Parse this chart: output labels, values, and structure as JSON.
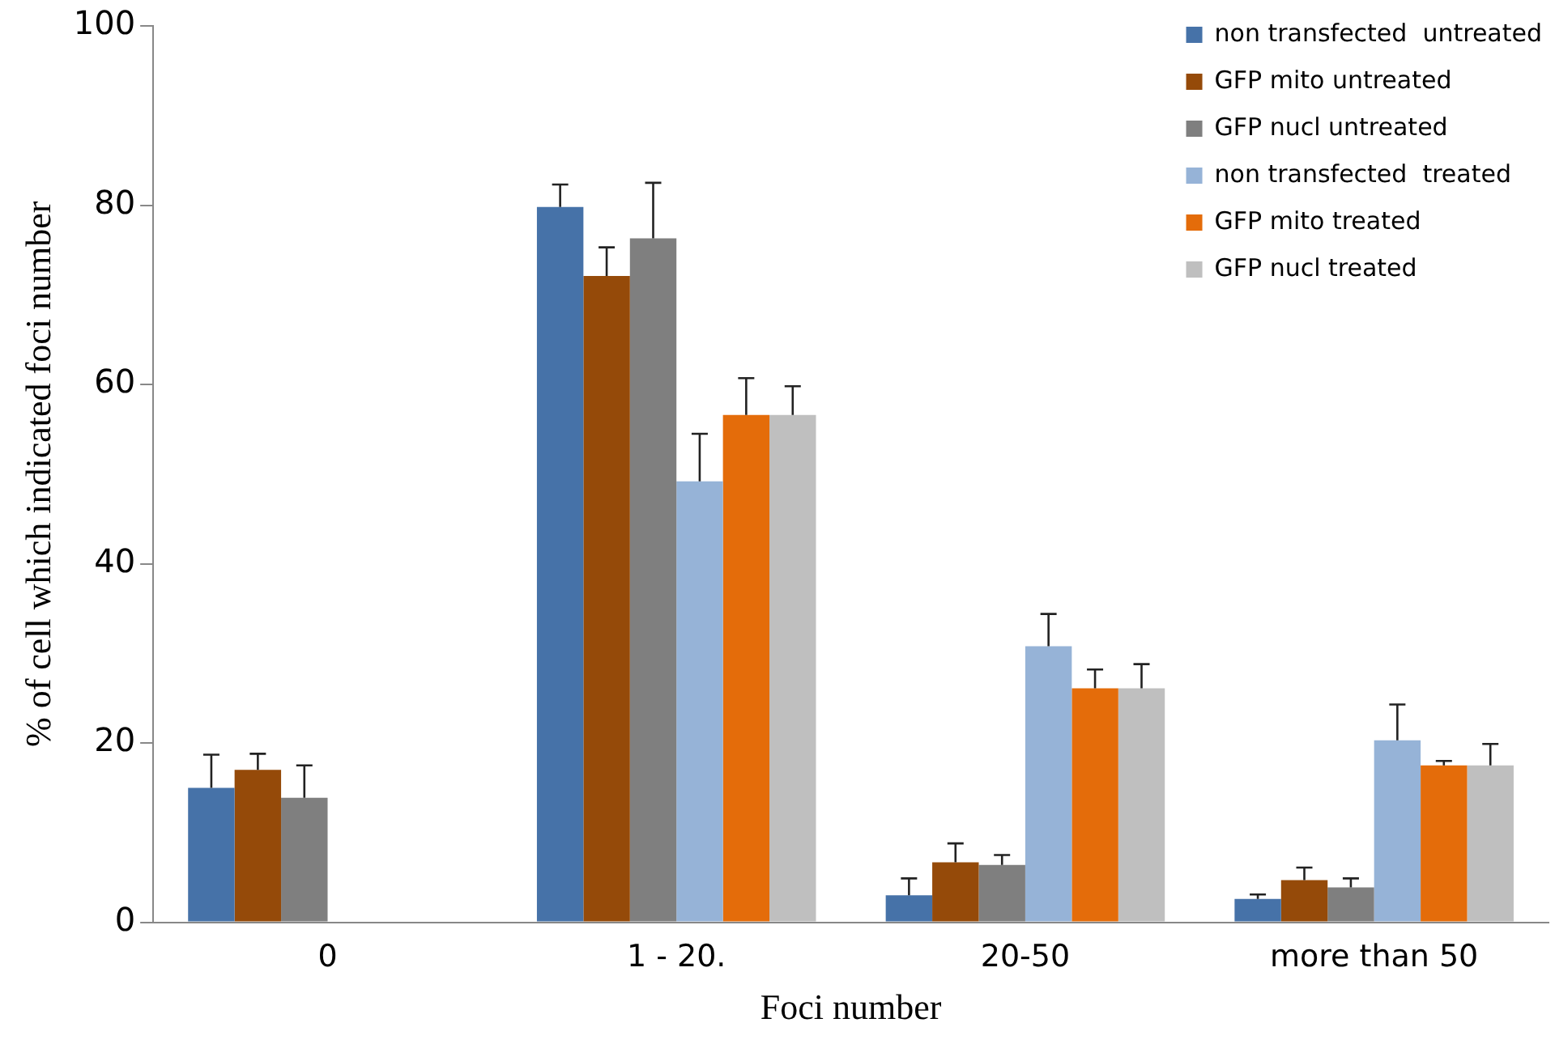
{
  "chart_data": {
    "type": "bar",
    "xlabel": "Foci number",
    "ylabel": "% of cell which indicated foci number",
    "categories": [
      "0",
      "1 - 20.",
      "20-50",
      "more than 50"
    ],
    "ylim": [
      0,
      100
    ],
    "yticks": [
      0,
      20,
      40,
      60,
      80,
      100
    ],
    "grid": false,
    "legend": "top right",
    "series": [
      {
        "name": "non transfected  untreated",
        "color": "#4672a8",
        "values": [
          15.0,
          79.8,
          3.0,
          2.6
        ],
        "errors": [
          [
            15.0,
            18.7
          ],
          [
            79.8,
            82.3
          ],
          [
            3.0,
            4.9
          ],
          [
            2.6,
            3.1
          ]
        ]
      },
      {
        "name": "GFP mito untreated",
        "color": "#954a09",
        "values": [
          17.0,
          72.1,
          6.7,
          4.7
        ],
        "errors": [
          [
            17.0,
            18.8
          ],
          [
            72.1,
            75.3
          ],
          [
            6.7,
            8.8
          ],
          [
            4.7,
            6.1
          ]
        ]
      },
      {
        "name": "GFP nucl untreated",
        "color": "#7f7f7f",
        "values": [
          13.9,
          76.3,
          6.4,
          3.9
        ],
        "errors": [
          [
            13.9,
            17.5
          ],
          [
            76.3,
            82.5
          ],
          [
            6.4,
            7.5
          ],
          [
            3.9,
            4.9
          ]
        ]
      },
      {
        "name": "non transfected  treated",
        "color": "#96b3d7",
        "values": [
          0,
          49.2,
          30.8,
          20.3
        ],
        "errors": [
          null,
          [
            49.2,
            54.5
          ],
          [
            30.8,
            34.4
          ],
          [
            20.3,
            24.3
          ]
        ]
      },
      {
        "name": "GFP mito treated",
        "color": "#e46c0a",
        "values": [
          0,
          56.6,
          26.1,
          17.5
        ],
        "errors": [
          null,
          [
            56.6,
            60.7
          ],
          [
            26.1,
            28.2
          ],
          [
            17.5,
            18.0
          ]
        ]
      },
      {
        "name": "GFP nucl treated",
        "color": "#bfbfbf",
        "values": [
          0,
          56.6,
          26.1,
          17.5
        ],
        "errors": [
          null,
          [
            56.6,
            59.8
          ],
          [
            26.1,
            28.8
          ],
          [
            17.5,
            19.9
          ]
        ]
      }
    ]
  }
}
